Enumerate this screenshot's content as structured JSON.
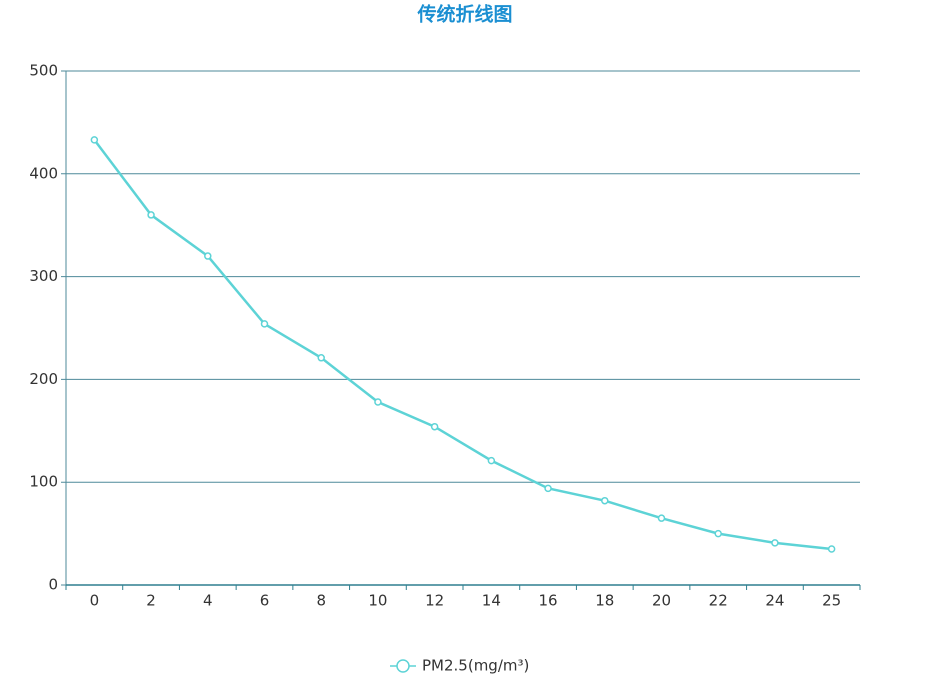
{
  "chart_data": {
    "type": "line",
    "title": "传统折线图",
    "categories": [
      "0",
      "2",
      "4",
      "6",
      "8",
      "10",
      "12",
      "14",
      "16",
      "18",
      "20",
      "22",
      "24",
      "25"
    ],
    "series": [
      {
        "name": "PM2.5(mg/m³)",
        "color": "#5dd3d6",
        "values": [
          433,
          360,
          320,
          254,
          221,
          178,
          154,
          121,
          94,
          82,
          65,
          50,
          41,
          35
        ]
      }
    ],
    "ylim": [
      0,
      500
    ],
    "yticks": [
      0,
      100,
      200,
      300,
      400,
      500
    ],
    "grid": true
  }
}
